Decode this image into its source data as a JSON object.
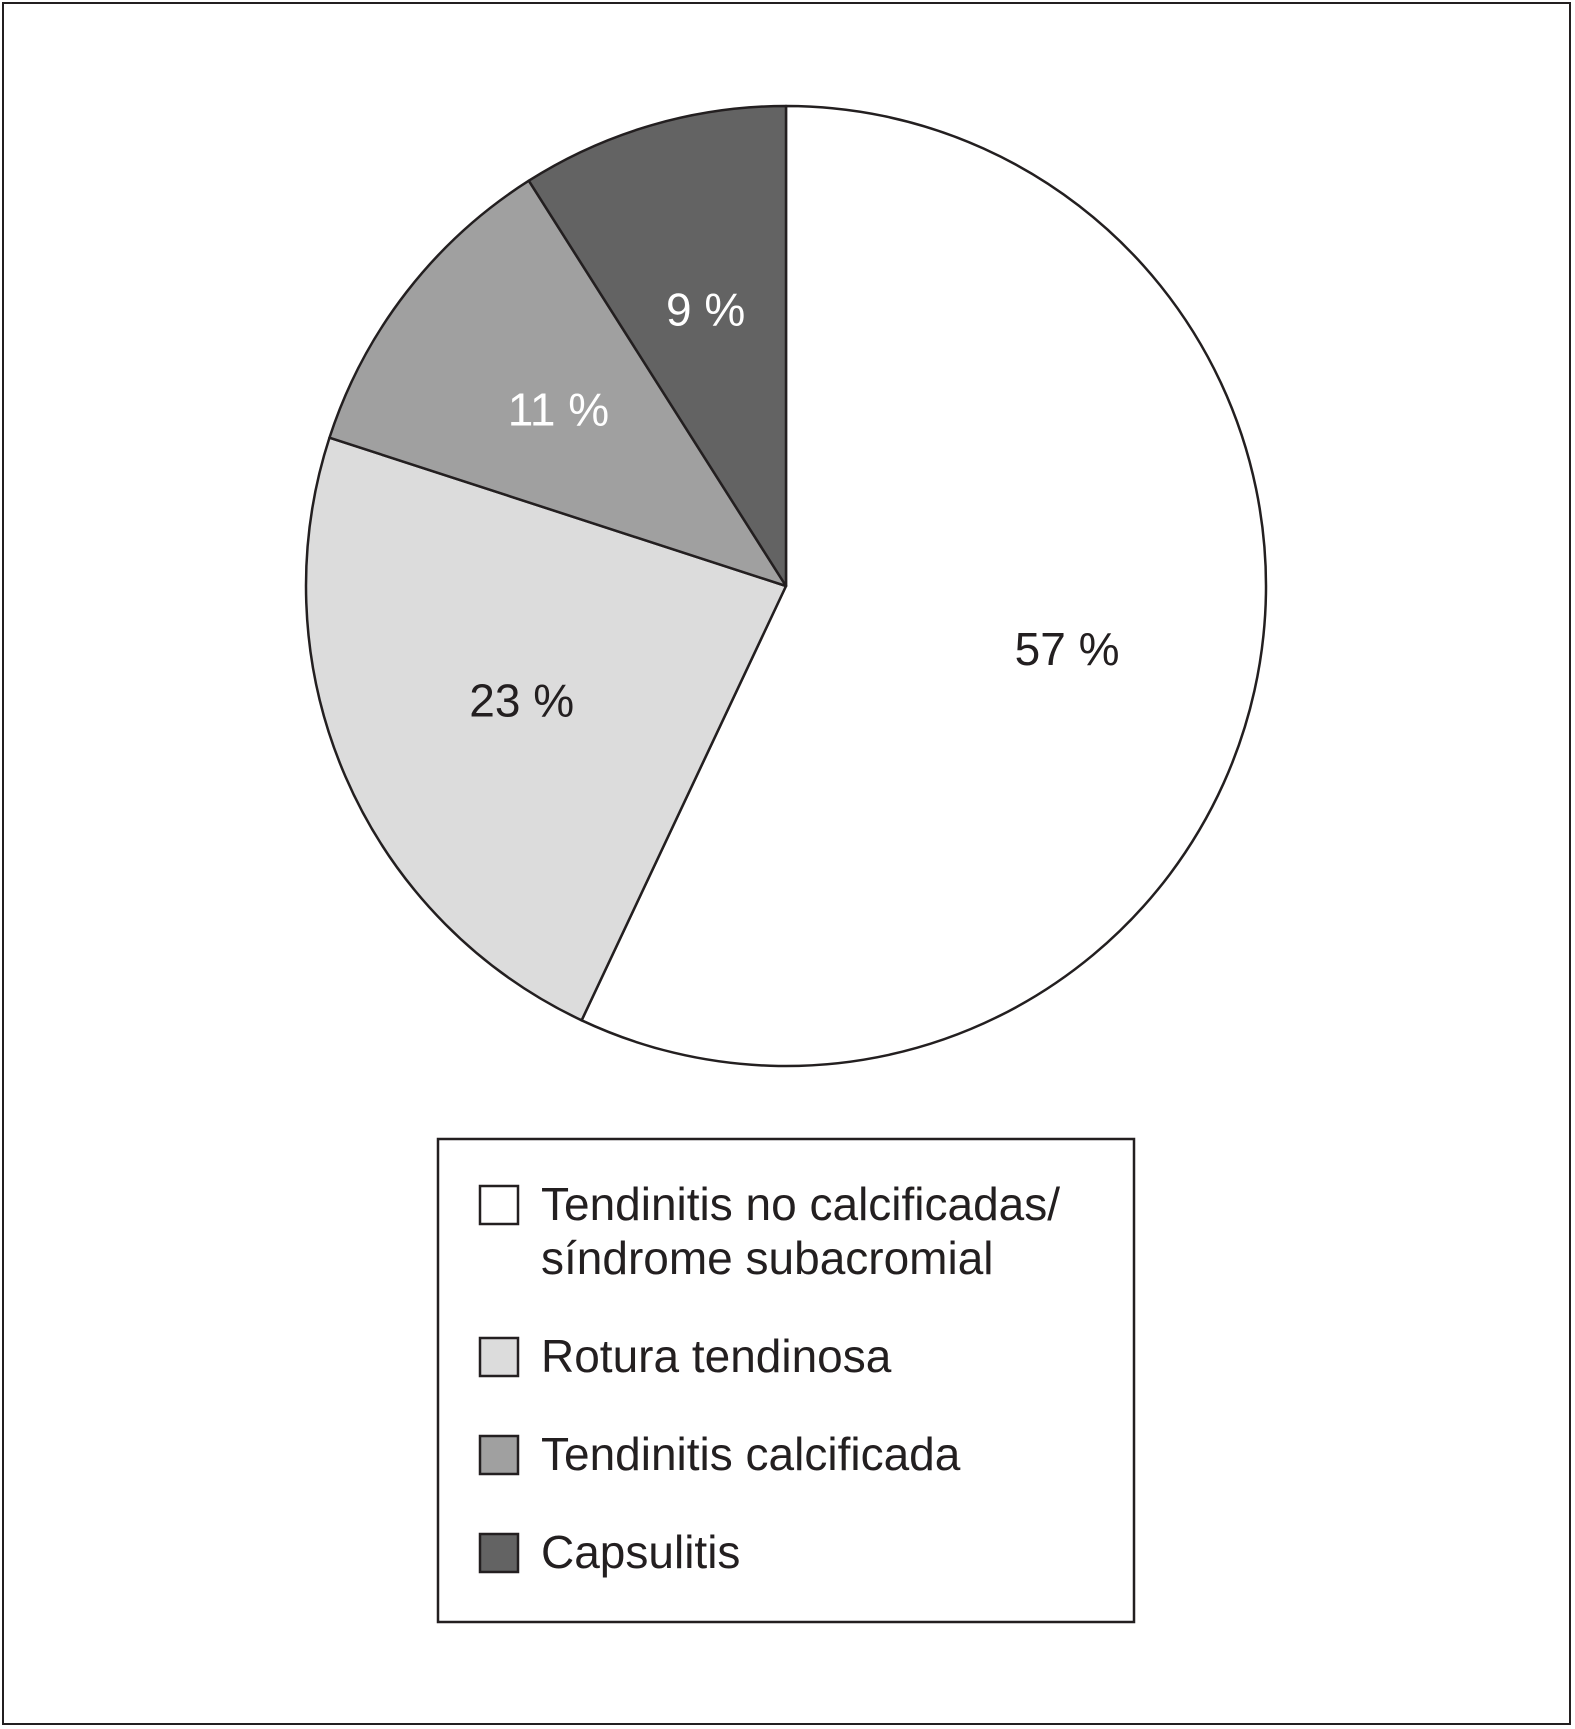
{
  "chart_data": {
    "type": "pie",
    "start_angle": "12 o'clock",
    "direction": "clockwise",
    "slices": [
      {
        "label": "Tendinitis no calcificadas/ síndrome subacromial",
        "label_lines": [
          "Tendinitis no calcificadas/",
          "síndrome subacromial"
        ],
        "value": 57,
        "display": "57 %",
        "color": "#ffffff",
        "label_color": "#231f20"
      },
      {
        "label": "Rotura tendinosa",
        "label_lines": [
          "Rotura tendinosa"
        ],
        "value": 23,
        "display": "23 %",
        "color": "#dcdcdc",
        "label_color": "#231f20"
      },
      {
        "label": "Tendinitis calcificada",
        "label_lines": [
          "Tendinitis calcificada"
        ],
        "value": 11,
        "display": "11 %",
        "color": "#a0a0a0",
        "label_color": "#ffffff"
      },
      {
        "label": "Capsulitis",
        "label_lines": [
          "Capsulitis"
        ],
        "value": 9,
        "display": "9 %",
        "color": "#636363",
        "label_color": "#ffffff"
      }
    ],
    "legend_position": "bottom",
    "stroke_color": "#231f20"
  }
}
